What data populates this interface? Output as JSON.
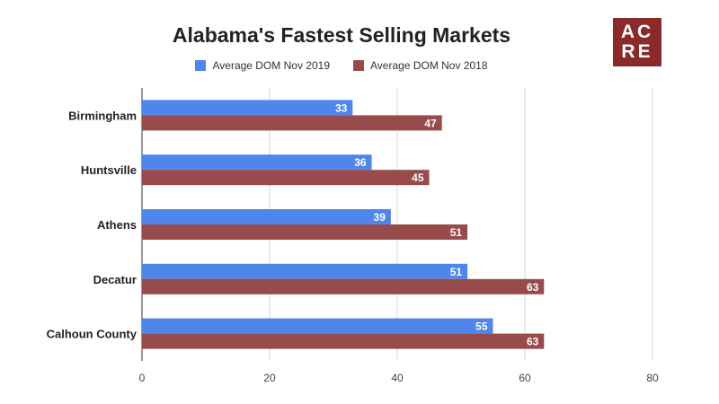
{
  "chart_data": {
    "type": "bar",
    "orientation": "horizontal",
    "title": "Alabama's Fastest Selling Markets",
    "categories": [
      "Birmingham",
      "Huntsville",
      "Athens",
      "Decatur",
      "Calhoun County"
    ],
    "series": [
      {
        "name": "Average DOM Nov 2019",
        "values": [
          33,
          36,
          39,
          51,
          55
        ],
        "color": "#4f86ec"
      },
      {
        "name": "Average DOM Nov 2018",
        "values": [
          47,
          45,
          51,
          63,
          63
        ],
        "color": "#984b4b"
      }
    ],
    "xlim": [
      0,
      80
    ],
    "xticks": [
      0,
      20,
      40,
      60,
      80
    ],
    "grid": true,
    "legend_position": "top",
    "data_labels": true
  },
  "logo": {
    "line1": "AC",
    "line2": "RE",
    "color": "#8a2a2a"
  }
}
